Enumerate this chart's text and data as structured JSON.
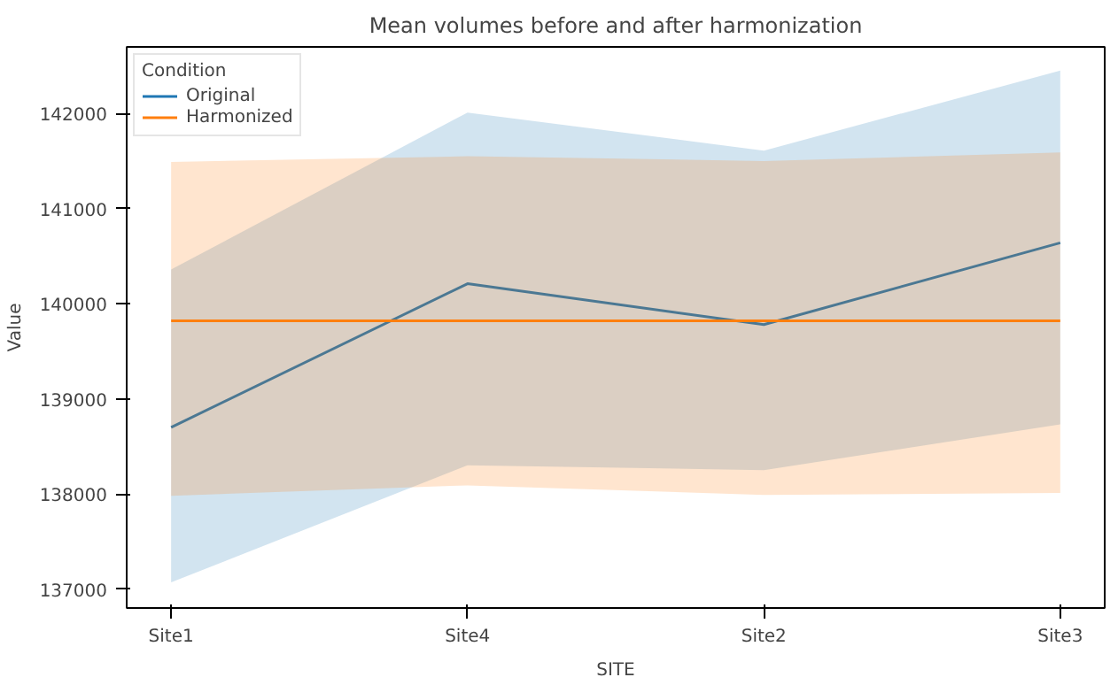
{
  "chart_data": {
    "type": "line",
    "title": "Mean volumes before and after harmonization",
    "xlabel": "SITE",
    "ylabel": "Value",
    "legend_title": "Condition",
    "categories": [
      "Site1",
      "Site4",
      "Site2",
      "Site3"
    ],
    "series": [
      {
        "name": "Original",
        "color": "#1f77b4",
        "values": [
          138700,
          140210,
          139780,
          140640
        ],
        "lower": [
          137070,
          138300,
          138250,
          138730
        ],
        "upper": [
          140360,
          142010,
          141610,
          142450
        ]
      },
      {
        "name": "Harmonized",
        "color": "#ff7f0e",
        "values": [
          139820,
          139820,
          139820,
          139820
        ],
        "lower": [
          137980,
          138090,
          137990,
          138010
        ],
        "upper": [
          141490,
          141550,
          141500,
          141590
        ]
      }
    ],
    "ylim": [
      136800,
      142700
    ],
    "yticks": [
      137000,
      138000,
      139000,
      140000,
      141000,
      142000
    ],
    "grid": false,
    "legend": "top left",
    "marker": "none",
    "line_style": "solid"
  }
}
